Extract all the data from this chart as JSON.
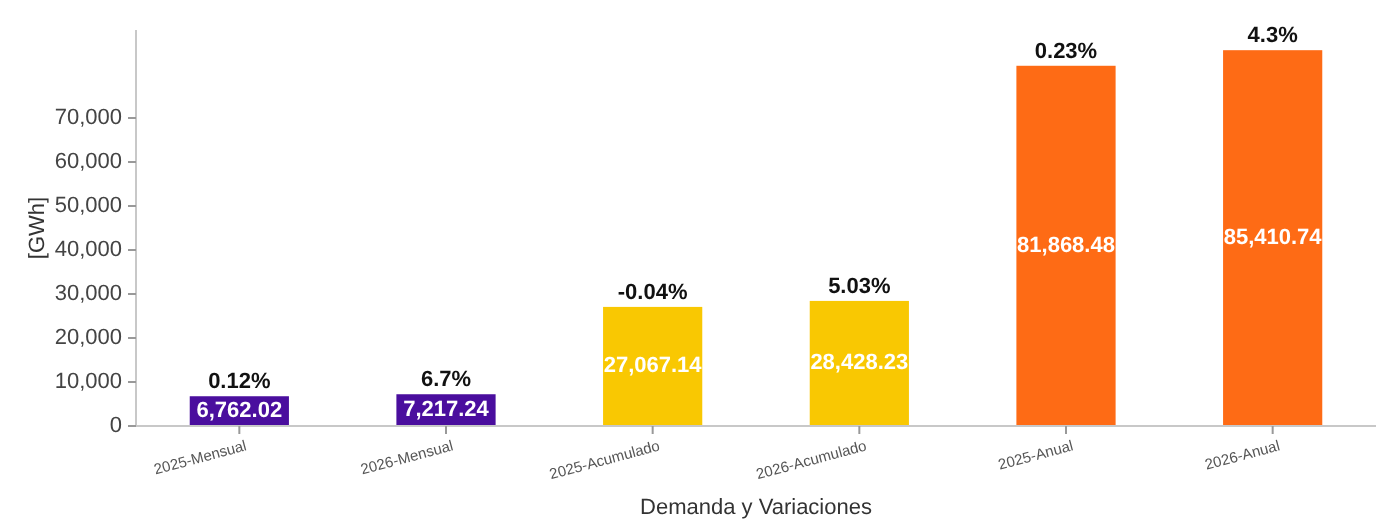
{
  "chart_data": {
    "type": "bar",
    "xlabel": "Demanda y Variaciones",
    "ylabel": "[GWh]",
    "categories": [
      "2025-Mensual",
      "2026-Mensual",
      "2025-Acumulado",
      "2026-Acumulado",
      "2025-Anual",
      "2026-Anual"
    ],
    "values": [
      6762.02,
      7217.24,
      27067.14,
      28428.23,
      81868.48,
      85410.74
    ],
    "colors": [
      "#4a0e9e",
      "#4a0e9e",
      "#f9c802",
      "#f9c802",
      "#fe6b15",
      "#fe6b15"
    ],
    "value_labels": [
      "6,762.02",
      "7,217.24",
      "27,067.14",
      "28,428.23",
      "81,868.48",
      "85,410.74"
    ],
    "annotations": [
      {
        "text": "0.12%",
        "x": "2025-Mensual",
        "y": 6762.02
      },
      {
        "text": "6.7%",
        "x": "2026-Mensual",
        "y": 7217.24
      },
      {
        "text": "-0.04%",
        "x": "2025-Acumulado",
        "y": 27067.14
      },
      {
        "text": "5.03%",
        "x": "2026-Acumulado",
        "y": 28428.23
      },
      {
        "text": "0.23%",
        "x": "2025-Anual",
        "y": 81868.48
      },
      {
        "text": "4.3%",
        "x": "2026-Anual",
        "y": 85410.74
      }
    ],
    "ylim": [
      0,
      90000
    ],
    "yticks": [
      {
        "value": 0,
        "label": "0"
      },
      {
        "value": 10000,
        "label": "10,000"
      },
      {
        "value": 20000,
        "label": "20,000"
      },
      {
        "value": 30000,
        "label": "30,000"
      },
      {
        "value": 40000,
        "label": "40,000"
      },
      {
        "value": 50000,
        "label": "50,000"
      },
      {
        "value": 60000,
        "label": "60,000"
      },
      {
        "value": 70000,
        "label": "70,000"
      }
    ]
  }
}
